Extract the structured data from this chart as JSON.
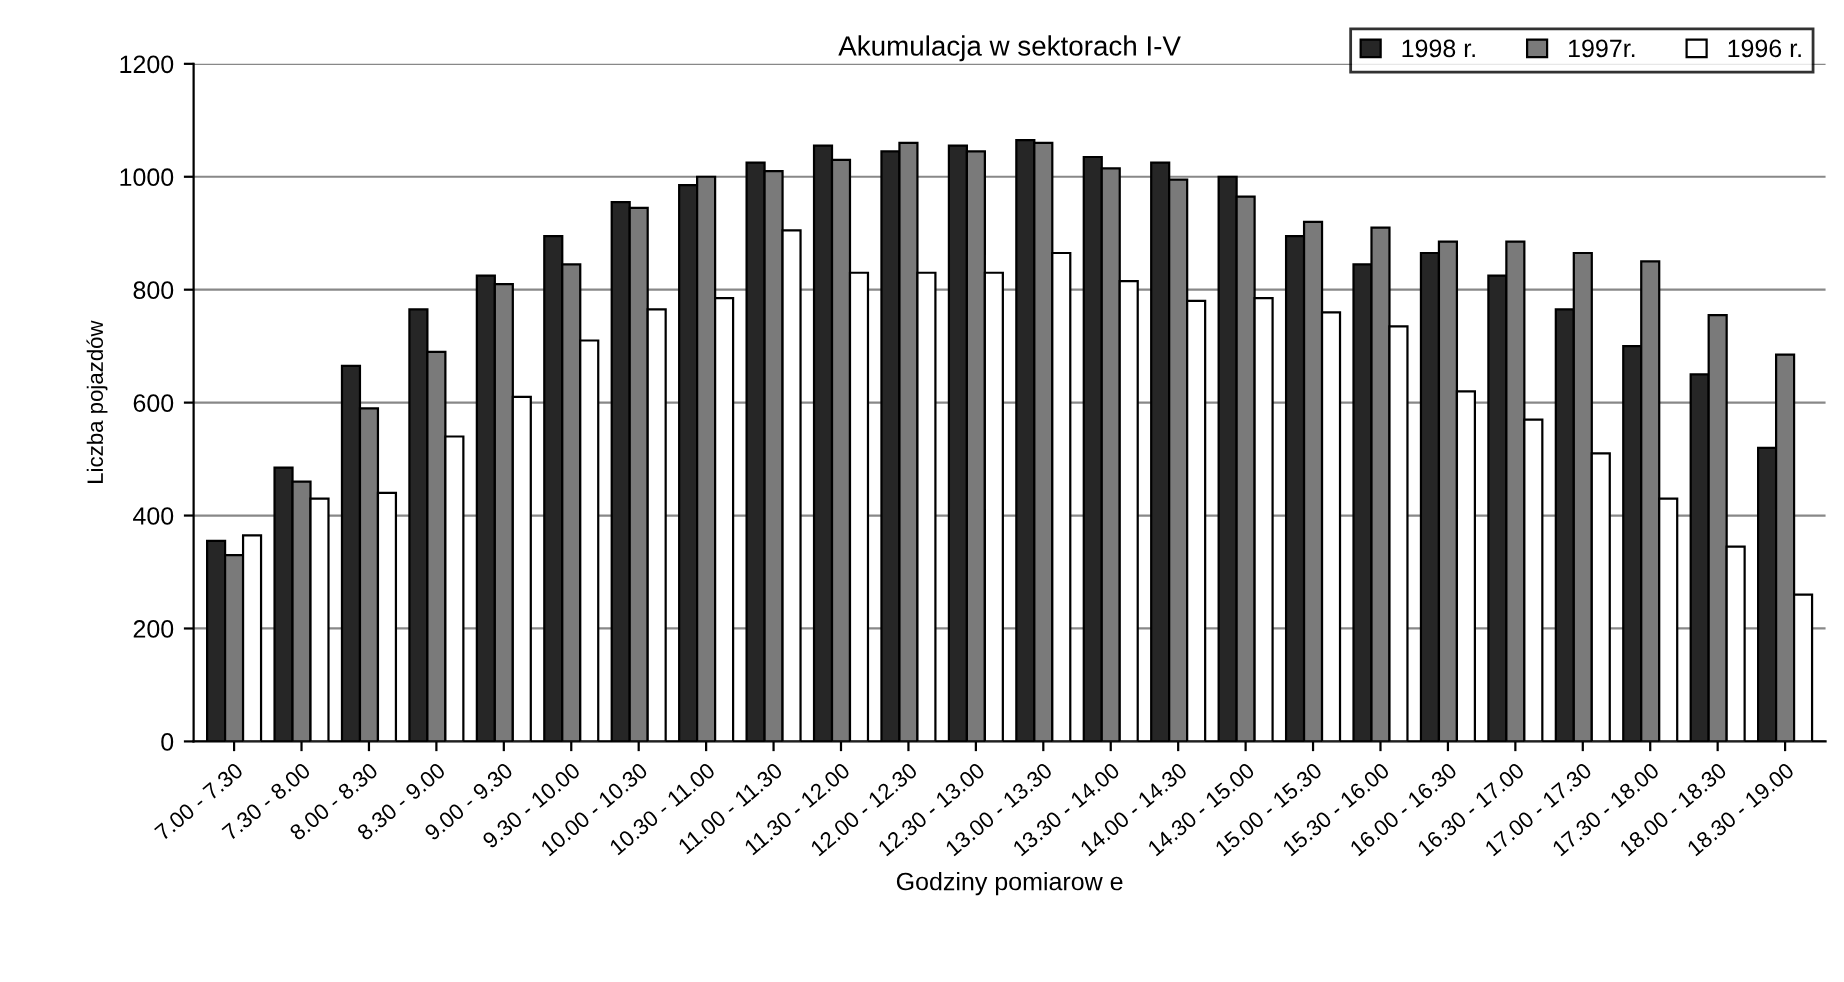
{
  "chart_data": {
    "type": "bar",
    "title": "Akumulacja w sektorach I-V",
    "xlabel": "Godziny pomiarow e",
    "ylabel": "Liczba pojazdów",
    "categories": [
      "7.00 - 7.30",
      "7.30 - 8.00",
      "8.00 - 8.30",
      "8.30 - 9.00",
      "9.00 - 9.30",
      "9.30 - 10.00",
      "10.00 - 10.30",
      "10.30 - 11.00",
      "11.00 - 11.30",
      "11.30 - 12.00",
      "12.00 - 12.30",
      "12.30 - 13.00",
      "13.00 - 13.30",
      "13.30 - 14.00",
      "14.00 - 14.30",
      "14.30 - 15.00",
      "15.00 - 15.30",
      "15.30 - 16.00",
      "16.00 - 16.30",
      "16.30 - 17.00",
      "17.00 - 17.30",
      "17.30 - 18.00",
      "18.00 - 18.30",
      "18.30 - 19.00"
    ],
    "series": [
      {
        "name": "1998 r.",
        "color": "#262626",
        "values": [
          355,
          485,
          665,
          765,
          825,
          895,
          955,
          985,
          1025,
          1055,
          1045,
          1055,
          1065,
          1035,
          1025,
          1000,
          895,
          845,
          865,
          825,
          765,
          700,
          650,
          520
        ]
      },
      {
        "name": "1997r.",
        "color": "#7a7a7a",
        "values": [
          330,
          460,
          590,
          690,
          810,
          845,
          945,
          1000,
          1010,
          1030,
          1060,
          1045,
          1060,
          1015,
          995,
          965,
          920,
          910,
          885,
          885,
          865,
          850,
          755,
          685
        ]
      },
      {
        "name": "1996 r.",
        "color": "#ffffff",
        "values": [
          365,
          430,
          440,
          540,
          610,
          710,
          765,
          785,
          905,
          830,
          830,
          830,
          865,
          815,
          780,
          785,
          760,
          735,
          620,
          570,
          510,
          430,
          345,
          260
        ]
      }
    ],
    "ylim": [
      0,
      1200
    ],
    "yticks": [
      0,
      200,
      400,
      600,
      800,
      1000,
      1200
    ],
    "grid": "y",
    "legend": "top right"
  }
}
